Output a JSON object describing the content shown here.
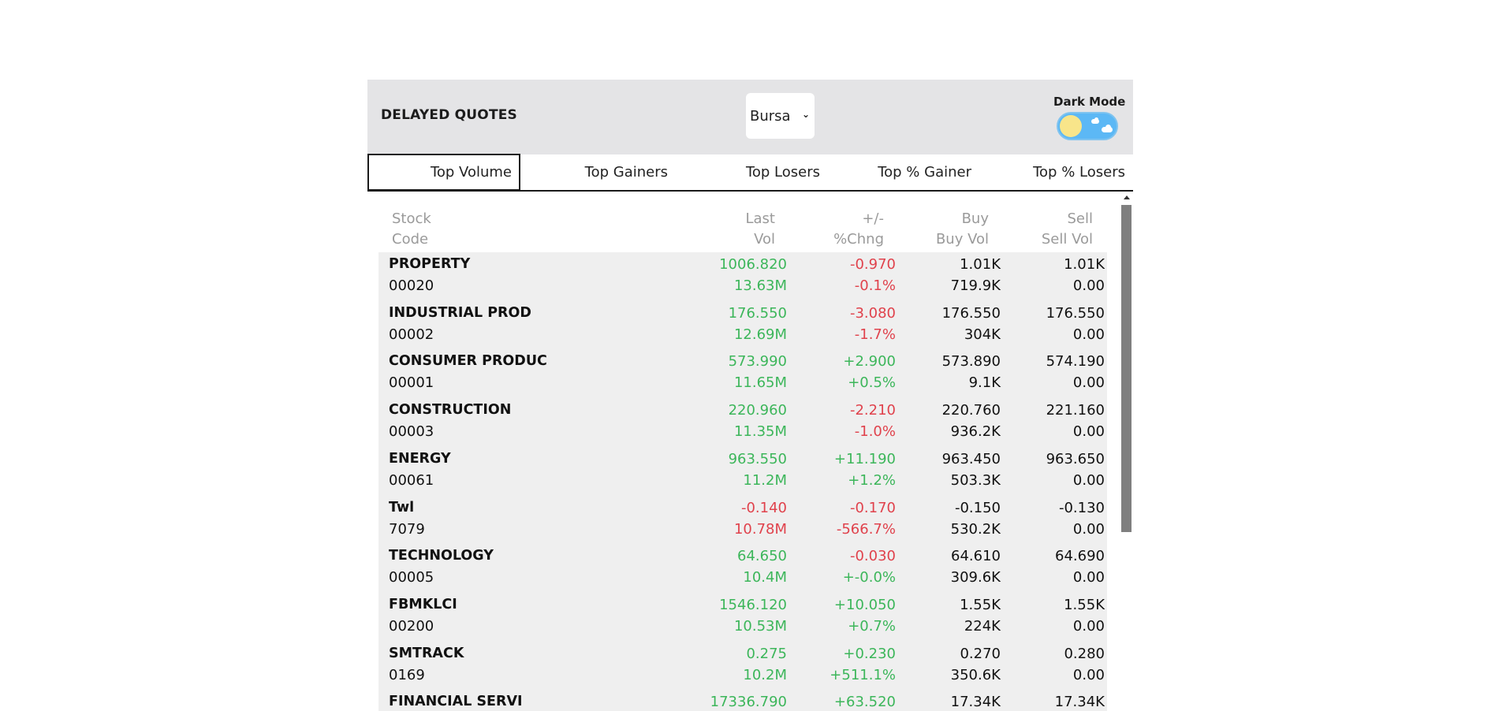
{
  "header": {
    "title": "DELAYED QUOTES",
    "market_select": {
      "selected": "Bursa"
    },
    "dark_mode": {
      "label": "Dark Mode",
      "enabled": false
    }
  },
  "tabs": [
    {
      "label": "Top Volume",
      "active": true
    },
    {
      "label": "Top Gainers",
      "active": false
    },
    {
      "label": "Top Losers",
      "active": false
    },
    {
      "label": "Top % Gainer",
      "active": false
    },
    {
      "label": "Top % Losers",
      "active": false
    }
  ],
  "columns": {
    "stock": {
      "line1": "Stock",
      "line2": "Code"
    },
    "last": {
      "line1": "Last",
      "line2": "Vol"
    },
    "change": {
      "line1": "+/-",
      "line2": "%Chng"
    },
    "buy": {
      "line1": "Buy",
      "line2": "Buy Vol"
    },
    "sell": {
      "line1": "Sell",
      "line2": "Sell Vol"
    }
  },
  "rows": [
    {
      "name": "PROPERTY",
      "code": "00020",
      "last": "1006.820",
      "vol": "13.63M",
      "chg": "-0.970",
      "pct": "-0.1%",
      "buy": "1.01K",
      "buy_vol": "719.9K",
      "sell": "1.01K",
      "sell_vol": "0.00",
      "last_color": "green",
      "chg_color": "red"
    },
    {
      "name": "INDUSTRIAL PROD",
      "code": "00002",
      "last": "176.550",
      "vol": "12.69M",
      "chg": "-3.080",
      "pct": "-1.7%",
      "buy": "176.550",
      "buy_vol": "304K",
      "sell": "176.550",
      "sell_vol": "0.00",
      "last_color": "green",
      "chg_color": "red"
    },
    {
      "name": "CONSUMER PRODUC",
      "code": "00001",
      "last": "573.990",
      "vol": "11.65M",
      "chg": "+2.900",
      "pct": "+0.5%",
      "buy": "573.890",
      "buy_vol": "9.1K",
      "sell": "574.190",
      "sell_vol": "0.00",
      "last_color": "green",
      "chg_color": "green"
    },
    {
      "name": "CONSTRUCTION",
      "code": "00003",
      "last": "220.960",
      "vol": "11.35M",
      "chg": "-2.210",
      "pct": "-1.0%",
      "buy": "220.760",
      "buy_vol": "936.2K",
      "sell": "221.160",
      "sell_vol": "0.00",
      "last_color": "green",
      "chg_color": "red"
    },
    {
      "name": "ENERGY",
      "code": "00061",
      "last": "963.550",
      "vol": "11.2M",
      "chg": "+11.190",
      "pct": "+1.2%",
      "buy": "963.450",
      "buy_vol": "503.3K",
      "sell": "963.650",
      "sell_vol": "0.00",
      "last_color": "green",
      "chg_color": "green"
    },
    {
      "name": "Twl",
      "code": "7079",
      "last": "-0.140",
      "vol": "10.78M",
      "chg": "-0.170",
      "pct": "-566.7%",
      "buy": "-0.150",
      "buy_vol": "530.2K",
      "sell": "-0.130",
      "sell_vol": "0.00",
      "last_color": "red",
      "chg_color": "red"
    },
    {
      "name": "TECHNOLOGY",
      "code": "00005",
      "last": "64.650",
      "vol": "10.4M",
      "chg": "-0.030",
      "pct": "+-0.0%",
      "buy": "64.610",
      "buy_vol": "309.6K",
      "sell": "64.690",
      "sell_vol": "0.00",
      "last_color": "green",
      "chg_color": "red",
      "pct_color": "green"
    },
    {
      "name": "FBMKLCI",
      "code": "00200",
      "last": "1546.120",
      "vol": "10.53M",
      "chg": "+10.050",
      "pct": "+0.7%",
      "buy": "1.55K",
      "buy_vol": "224K",
      "sell": "1.55K",
      "sell_vol": "0.00",
      "last_color": "green",
      "chg_color": "green"
    },
    {
      "name": "SMTRACK",
      "code": "0169",
      "last": "0.275",
      "vol": "10.2M",
      "chg": "+0.230",
      "pct": "+511.1%",
      "buy": "0.270",
      "buy_vol": "350.6K",
      "sell": "0.280",
      "sell_vol": "0.00",
      "last_color": "green",
      "chg_color": "green"
    },
    {
      "name": "FINANCIAL SERVI",
      "code": "",
      "last": "17336.790",
      "vol": "",
      "chg": "+63.520",
      "pct": "",
      "buy": "17.34K",
      "buy_vol": "",
      "sell": "17.34K",
      "sell_vol": "",
      "last_color": "green",
      "chg_color": "green"
    }
  ],
  "colors": {
    "up": "#3cb65a",
    "down": "#e0424c",
    "header_bg": "#e4e4e6",
    "row_bg": "#efefef"
  }
}
